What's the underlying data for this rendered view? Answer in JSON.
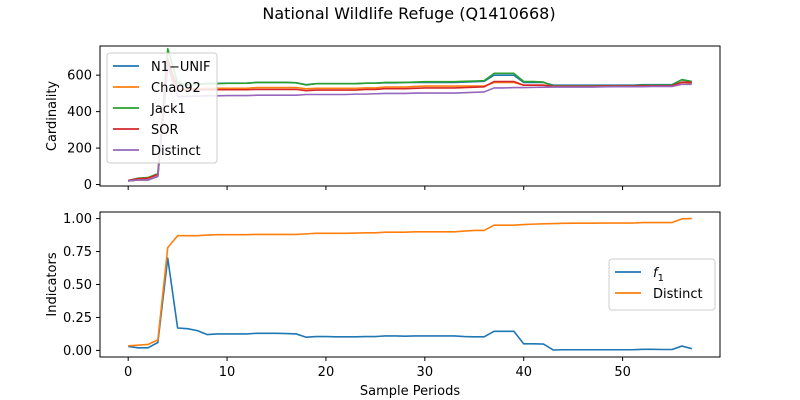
{
  "figure": {
    "title": "National Wildlife Refuge (Q1410668)"
  },
  "chart_data": [
    {
      "type": "line",
      "ylabel": "Cardinality",
      "xlabel": "",
      "xlim": [
        -2.85,
        59.85
      ],
      "ylim": [
        -8,
        760
      ],
      "xticks": [
        0,
        10,
        20,
        30,
        40,
        50
      ],
      "xtick_labels_visible": false,
      "yticks": [
        0,
        200,
        400,
        600
      ],
      "legend_position": "upper left",
      "series": [
        {
          "name": "N1−UNIF",
          "color": "#1f77b4",
          "x": [
            0,
            1,
            2,
            3,
            4,
            5,
            6,
            7,
            8,
            9,
            10,
            11,
            12,
            13,
            14,
            15,
            16,
            17,
            18,
            19,
            20,
            21,
            22,
            23,
            24,
            25,
            26,
            27,
            28,
            29,
            30,
            31,
            32,
            33,
            34,
            35,
            36,
            37,
            38,
            39,
            40,
            41,
            42,
            43,
            44,
            45,
            46,
            47,
            48,
            49,
            50,
            51,
            52,
            53,
            54,
            55,
            56,
            57
          ],
          "y": [
            20,
            25,
            25,
            45,
            660,
            540,
            545,
            550,
            555,
            555,
            556,
            556,
            556,
            560,
            560,
            560,
            560,
            558,
            548,
            553,
            553,
            553,
            553,
            553,
            556,
            556,
            558,
            558,
            560,
            560,
            560,
            560,
            560,
            560,
            562,
            564,
            566,
            600,
            600,
            600,
            560,
            560,
            560,
            545,
            545,
            545,
            545,
            545,
            545,
            545,
            545,
            545,
            548,
            548,
            548,
            548,
            575,
            565
          ]
        },
        {
          "name": "Chao92",
          "color": "#ff7f0e",
          "x": [
            0,
            1,
            2,
            3,
            4,
            5,
            6,
            7,
            8,
            9,
            10,
            11,
            12,
            13,
            14,
            15,
            16,
            17,
            18,
            19,
            20,
            21,
            22,
            23,
            24,
            25,
            26,
            27,
            28,
            29,
            30,
            31,
            32,
            33,
            34,
            35,
            36,
            37,
            38,
            39,
            40,
            41,
            42,
            43,
            44,
            45,
            46,
            47,
            48,
            49,
            50,
            51,
            52,
            53,
            54,
            55,
            56,
            57
          ],
          "y": [
            20,
            25,
            25,
            45,
            650,
            520,
            525,
            525,
            528,
            528,
            528,
            528,
            528,
            532,
            532,
            532,
            532,
            532,
            525,
            528,
            528,
            528,
            528,
            528,
            530,
            530,
            535,
            535,
            535,
            538,
            540,
            540,
            540,
            540,
            540,
            540,
            540,
            560,
            560,
            560,
            545,
            545,
            545,
            540,
            540,
            540,
            540,
            540,
            540,
            540,
            540,
            540,
            542,
            542,
            542,
            542,
            560,
            558
          ]
        },
        {
          "name": "Jack1",
          "color": "#2ca02c",
          "x": [
            0,
            1,
            2,
            3,
            4,
            5,
            6,
            7,
            8,
            9,
            10,
            11,
            12,
            13,
            14,
            15,
            16,
            17,
            18,
            19,
            20,
            21,
            22,
            23,
            24,
            25,
            26,
            27,
            28,
            29,
            30,
            31,
            32,
            33,
            34,
            35,
            36,
            37,
            38,
            39,
            40,
            41,
            42,
            43,
            44,
            45,
            46,
            47,
            48,
            49,
            50,
            51,
            52,
            53,
            54,
            55,
            56,
            57
          ],
          "y": [
            22,
            35,
            38,
            60,
            745,
            560,
            548,
            550,
            553,
            553,
            555,
            555,
            556,
            560,
            560,
            560,
            560,
            558,
            546,
            553,
            553,
            553,
            553,
            553,
            556,
            556,
            560,
            560,
            560,
            562,
            564,
            564,
            564,
            564,
            566,
            568,
            570,
            610,
            610,
            610,
            565,
            565,
            562,
            540,
            540,
            540,
            540,
            540,
            542,
            542,
            542,
            542,
            545,
            545,
            545,
            545,
            575,
            565
          ]
        },
        {
          "name": "SOR",
          "color": "#d62728",
          "x": [
            0,
            1,
            2,
            3,
            4,
            5,
            6,
            7,
            8,
            9,
            10,
            11,
            12,
            13,
            14,
            15,
            16,
            17,
            18,
            19,
            20,
            21,
            22,
            23,
            24,
            25,
            26,
            27,
            28,
            29,
            30,
            31,
            32,
            33,
            34,
            35,
            36,
            37,
            38,
            39,
            40,
            41,
            42,
            43,
            44,
            45,
            46,
            47,
            48,
            49,
            50,
            51,
            52,
            53,
            54,
            55,
            56,
            57
          ],
          "y": [
            22,
            32,
            35,
            55,
            690,
            520,
            520,
            520,
            520,
            520,
            520,
            520,
            520,
            522,
            522,
            522,
            522,
            522,
            515,
            518,
            518,
            518,
            518,
            518,
            522,
            522,
            526,
            526,
            526,
            528,
            530,
            530,
            530,
            530,
            532,
            534,
            536,
            565,
            565,
            565,
            545,
            545,
            545,
            538,
            538,
            538,
            538,
            538,
            540,
            540,
            540,
            540,
            542,
            542,
            542,
            542,
            562,
            560
          ]
        },
        {
          "name": "Distinct",
          "color": "#9467bd",
          "x": [
            0,
            1,
            2,
            3,
            4,
            5,
            6,
            7,
            8,
            9,
            10,
            11,
            12,
            13,
            14,
            15,
            16,
            17,
            18,
            19,
            20,
            21,
            22,
            23,
            24,
            25,
            26,
            27,
            28,
            29,
            30,
            31,
            32,
            33,
            34,
            35,
            36,
            37,
            38,
            39,
            40,
            41,
            42,
            43,
            44,
            45,
            46,
            47,
            48,
            49,
            50,
            51,
            52,
            53,
            54,
            55,
            56,
            57
          ],
          "y": [
            20,
            25,
            25,
            45,
            650,
            482,
            484,
            485,
            487,
            487,
            488,
            488,
            488,
            490,
            490,
            490,
            490,
            490,
            494,
            494,
            494,
            494,
            494,
            496,
            496,
            498,
            500,
            500,
            500,
            502,
            502,
            502,
            502,
            502,
            504,
            506,
            508,
            530,
            530,
            532,
            532,
            533,
            534,
            535,
            535,
            535,
            535,
            535,
            536,
            537,
            537,
            537,
            537,
            538,
            538,
            538,
            550,
            550
          ]
        }
      ]
    },
    {
      "type": "line",
      "ylabel": "Indicators",
      "xlabel": "Sample Periods",
      "xlim": [
        -2.85,
        59.85
      ],
      "ylim": [
        -0.05,
        1.05
      ],
      "xticks": [
        0,
        10,
        20,
        30,
        40,
        50
      ],
      "yticks": [
        0.0,
        0.25,
        0.5,
        0.75,
        1.0
      ],
      "ytick_labels": [
        "0.00",
        "0.25",
        "0.50",
        "0.75",
        "1.00"
      ],
      "legend_position": "center right",
      "series": [
        {
          "name": "f1",
          "name_base": "f",
          "name_sub": "1",
          "color": "#1f77b4",
          "x": [
            0,
            1,
            2,
            3,
            4,
            5,
            6,
            7,
            8,
            9,
            10,
            11,
            12,
            13,
            14,
            15,
            16,
            17,
            18,
            19,
            20,
            21,
            22,
            23,
            24,
            25,
            26,
            27,
            28,
            29,
            30,
            31,
            32,
            33,
            34,
            35,
            36,
            37,
            38,
            39,
            40,
            41,
            42,
            43,
            44,
            45,
            46,
            47,
            48,
            49,
            50,
            51,
            52,
            53,
            54,
            55,
            56,
            57
          ],
          "y": [
            0.03,
            0.02,
            0.02,
            0.06,
            0.7,
            0.17,
            0.165,
            0.15,
            0.12,
            0.125,
            0.125,
            0.125,
            0.125,
            0.13,
            0.13,
            0.13,
            0.128,
            0.125,
            0.1,
            0.105,
            0.105,
            0.103,
            0.103,
            0.103,
            0.105,
            0.105,
            0.11,
            0.11,
            0.108,
            0.11,
            0.11,
            0.11,
            0.11,
            0.11,
            0.105,
            0.103,
            0.103,
            0.145,
            0.145,
            0.145,
            0.05,
            0.05,
            0.048,
            0.003,
            0.005,
            0.005,
            0.005,
            0.005,
            0.005,
            0.005,
            0.005,
            0.005,
            0.008,
            0.008,
            0.007,
            0.007,
            0.033,
            0.013
          ]
        },
        {
          "name": "Distinct",
          "color": "#ff7f0e",
          "x": [
            0,
            1,
            2,
            3,
            4,
            5,
            6,
            7,
            8,
            9,
            10,
            11,
            12,
            13,
            14,
            15,
            16,
            17,
            18,
            19,
            20,
            21,
            22,
            23,
            24,
            25,
            26,
            27,
            28,
            29,
            30,
            31,
            32,
            33,
            34,
            35,
            36,
            37,
            38,
            39,
            40,
            41,
            42,
            43,
            44,
            45,
            46,
            47,
            48,
            49,
            50,
            51,
            52,
            53,
            54,
            55,
            56,
            57
          ],
          "y": [
            0.035,
            0.04,
            0.045,
            0.08,
            0.78,
            0.87,
            0.87,
            0.87,
            0.875,
            0.878,
            0.878,
            0.878,
            0.878,
            0.88,
            0.88,
            0.88,
            0.88,
            0.88,
            0.884,
            0.888,
            0.888,
            0.888,
            0.888,
            0.89,
            0.892,
            0.892,
            0.897,
            0.897,
            0.897,
            0.9,
            0.9,
            0.9,
            0.9,
            0.9,
            0.905,
            0.91,
            0.91,
            0.95,
            0.95,
            0.95,
            0.955,
            0.958,
            0.96,
            0.962,
            0.964,
            0.965,
            0.965,
            0.965,
            0.966,
            0.966,
            0.966,
            0.966,
            0.97,
            0.97,
            0.97,
            0.97,
            0.998,
            1.0
          ]
        }
      ]
    }
  ]
}
